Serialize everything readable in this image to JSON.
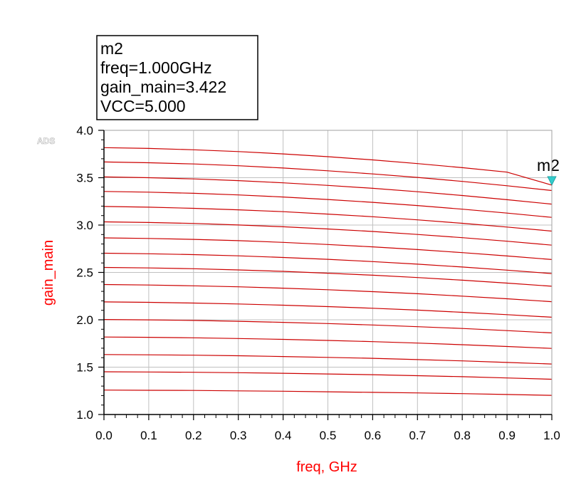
{
  "chart_data": {
    "type": "line",
    "title": "",
    "watermark": "ADS",
    "xlabel": "freq, GHz",
    "ylabel": "gain_main",
    "xlim": [
      0.0,
      1.0
    ],
    "ylim": [
      1.0,
      4.0
    ],
    "xticks": [
      "0.0",
      "0.1",
      "0.2",
      "0.3",
      "0.4",
      "0.5",
      "0.6",
      "0.7",
      "0.8",
      "0.9",
      "1.0"
    ],
    "yticks": [
      "1.0",
      "1.5",
      "2.0",
      "2.5",
      "3.0",
      "3.5",
      "4.0"
    ],
    "grid": true,
    "line_color": "#cc0000",
    "label_color": "#ff0000",
    "x": [
      0.0,
      0.1,
      0.2,
      0.3,
      0.4,
      0.5,
      0.6,
      0.7,
      0.8,
      0.9,
      1.0
    ],
    "series": [
      {
        "values": [
          1.258,
          1.256,
          1.254,
          1.25,
          1.246,
          1.24,
          1.234,
          1.228,
          1.22,
          1.211,
          1.202
        ]
      },
      {
        "values": [
          1.451,
          1.449,
          1.446,
          1.441,
          1.435,
          1.428,
          1.42,
          1.41,
          1.399,
          1.386,
          1.372
        ]
      },
      {
        "values": [
          1.633,
          1.63,
          1.626,
          1.62,
          1.612,
          1.603,
          1.593,
          1.58,
          1.566,
          1.55,
          1.533
        ]
      },
      {
        "values": [
          1.818,
          1.815,
          1.81,
          1.802,
          1.793,
          1.782,
          1.769,
          1.754,
          1.737,
          1.718,
          1.698
        ]
      },
      {
        "values": [
          2.003,
          1.999,
          1.993,
          1.984,
          1.973,
          1.96,
          1.945,
          1.927,
          1.908,
          1.886,
          1.862
        ]
      },
      {
        "values": [
          2.189,
          2.184,
          2.177,
          2.167,
          2.154,
          2.139,
          2.122,
          2.102,
          2.079,
          2.054,
          2.027
        ]
      },
      {
        "values": [
          2.372,
          2.367,
          2.359,
          2.348,
          2.334,
          2.317,
          2.297,
          2.275,
          2.25,
          2.222,
          2.191
        ]
      },
      {
        "values": [
          2.553,
          2.547,
          2.539,
          2.526,
          2.511,
          2.492,
          2.471,
          2.446,
          2.418,
          2.387,
          2.354
        ]
      },
      {
        "values": [
          2.703,
          2.697,
          2.688,
          2.675,
          2.658,
          2.638,
          2.614,
          2.587,
          2.557,
          2.524,
          2.488
        ]
      },
      {
        "values": [
          2.865,
          2.859,
          2.849,
          2.835,
          2.817,
          2.795,
          2.77,
          2.741,
          2.709,
          2.674,
          2.636
        ]
      },
      {
        "values": [
          3.034,
          3.027,
          3.017,
          3.001,
          2.982,
          2.959,
          2.932,
          2.901,
          2.867,
          2.829,
          2.788
        ]
      },
      {
        "values": [
          3.196,
          3.189,
          3.177,
          3.161,
          3.141,
          3.116,
          3.088,
          3.055,
          3.019,
          2.979,
          2.936
        ]
      },
      {
        "values": [
          3.355,
          3.347,
          3.335,
          3.318,
          3.296,
          3.27,
          3.24,
          3.206,
          3.168,
          3.126,
          3.081
        ]
      },
      {
        "values": [
          3.508,
          3.5,
          3.487,
          3.469,
          3.446,
          3.419,
          3.388,
          3.352,
          3.312,
          3.268,
          3.221
        ]
      },
      {
        "values": [
          3.666,
          3.658,
          3.645,
          3.626,
          3.602,
          3.573,
          3.54,
          3.503,
          3.461,
          3.415,
          3.365
        ]
      },
      {
        "values": [
          3.817,
          3.809,
          3.795,
          3.776,
          3.751,
          3.722,
          3.688,
          3.649,
          3.606,
          3.559,
          3.422
        ]
      }
    ],
    "marker": {
      "name": "m2",
      "x": 1.0,
      "y": 3.422,
      "color": "#33cccc",
      "readout": [
        "m2",
        "freq=1.000GHz",
        "gain_main=3.422",
        "VCC=5.000"
      ]
    }
  }
}
